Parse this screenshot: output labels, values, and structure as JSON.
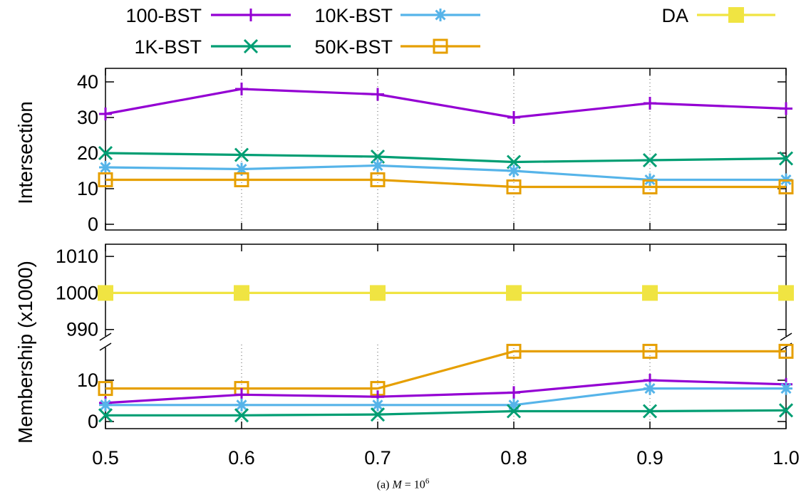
{
  "chart_data": {
    "type": "line",
    "x": [
      0.5,
      0.6,
      0.7,
      0.8,
      0.9,
      1.0
    ],
    "x_tick_labels": [
      "0.5",
      "0.6",
      "0.7",
      "0.8",
      "0.9",
      "1.0"
    ],
    "legend_position": "top",
    "legend": [
      "100-BST",
      "10K-BST",
      "DA",
      "1K-BST",
      "50K-BST"
    ],
    "colors": {
      "100-BST": "#9400d3",
      "1K-BST": "#009e73",
      "10K-BST": "#56b4e9",
      "50K-BST": "#e69f00",
      "DA": "#f0e442"
    },
    "markers": {
      "100-BST": "plus",
      "1K-BST": "cross",
      "10K-BST": "star",
      "50K-BST": "open-square",
      "DA": "filled-square"
    },
    "panels": [
      {
        "name": "intersection",
        "ylabel": "Intersection",
        "ylim": [
          0,
          40
        ],
        "yticks": [
          "0",
          "10",
          "20",
          "30",
          "40"
        ],
        "series": [
          {
            "name": "100-BST",
            "values": [
              31,
              38,
              36.5,
              30,
              34,
              32.5
            ]
          },
          {
            "name": "1K-BST",
            "values": [
              20,
              19.5,
              19,
              17.5,
              18,
              18.5
            ]
          },
          {
            "name": "10K-BST",
            "values": [
              16,
              15.5,
              16.5,
              15,
              12.5,
              12.5
            ]
          },
          {
            "name": "50K-BST",
            "values": [
              12.5,
              12.5,
              12.5,
              10.5,
              10.5,
              10.5
            ]
          }
        ]
      },
      {
        "name": "membership",
        "ylabel": "Membership (x1000)",
        "broken_axis": true,
        "upper_ylim": [
          988,
          1011
        ],
        "upper_yticks": [
          "990",
          "1000",
          "1010"
        ],
        "lower_ylim": [
          0,
          20
        ],
        "lower_yticks": [
          "0",
          "10"
        ],
        "series": [
          {
            "name": "DA",
            "values": [
              1000,
              1000,
              1000,
              1000,
              1000,
              1000
            ]
          },
          {
            "name": "50K-BST",
            "values": [
              8,
              8,
              8,
              17,
              17,
              17
            ]
          },
          {
            "name": "100-BST",
            "values": [
              4.5,
              6.5,
              6,
              7,
              10,
              9
            ]
          },
          {
            "name": "10K-BST",
            "values": [
              4,
              4,
              4,
              4,
              8,
              8
            ]
          },
          {
            "name": "1K-BST",
            "values": [
              1.5,
              1.5,
              1.7,
              2.5,
              2.5,
              2.7
            ]
          }
        ]
      }
    ]
  },
  "caption": {
    "prefix": "(a) ",
    "variable": "M",
    "relation": " = 10",
    "exponent": "6"
  }
}
